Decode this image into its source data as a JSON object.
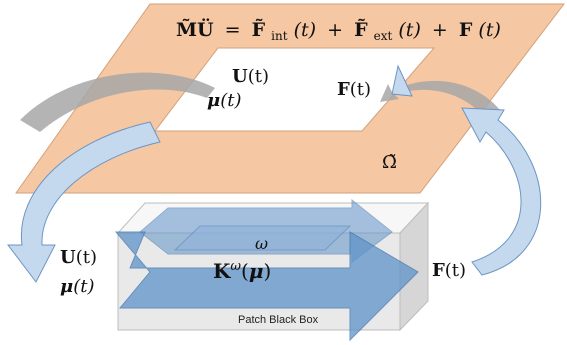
{
  "colors": {
    "plate_fill": "#f5c7a2",
    "plate_stroke": "#d2a27b",
    "arrow_fill": "#c4d8ee",
    "arrow_stroke": "#6d95c4",
    "block_arrow_fill": "#5f93c8",
    "box_face": "#e9e9e9",
    "box_top": "#f7f7f7",
    "box_side": "#d6d6d6",
    "grey_arrow": "#a7a7a7"
  },
  "plate": {
    "equation": "M̃Ü = F̃int(t) + F̃ext(t) + F(t)",
    "eq_lhs": "M̃Ü",
    "eq_equals": "=",
    "eq_F1": "F̃",
    "eq_sub_int": "int",
    "eq_arg1": "(t)",
    "eq_plus1": "+",
    "eq_F2": "F̃",
    "eq_sub_ext": "ext",
    "eq_arg2": "(t)",
    "eq_plus2": "+",
    "eq_F3": "F",
    "eq_arg3": "(t)",
    "u_label_bold": "U",
    "u_label_arg": "(t)",
    "mu_label_bold": "μ",
    "mu_label_arg": "(t)",
    "f_label_bold": "F",
    "f_label_arg": "(t)",
    "omega_tilde": "Ω̃"
  },
  "box": {
    "u_label_bold": "U",
    "u_label_arg": "(t)",
    "mu_label_bold": "μ",
    "mu_label_arg": "(t)",
    "omega": "ω",
    "k_bold": "K",
    "k_sup": "ω",
    "k_arg_open": "(",
    "k_arg_mu": "μ",
    "k_arg_close": ")",
    "f_label_bold": "F",
    "f_label_arg": "(t)",
    "caption": "Patch Black Box"
  }
}
